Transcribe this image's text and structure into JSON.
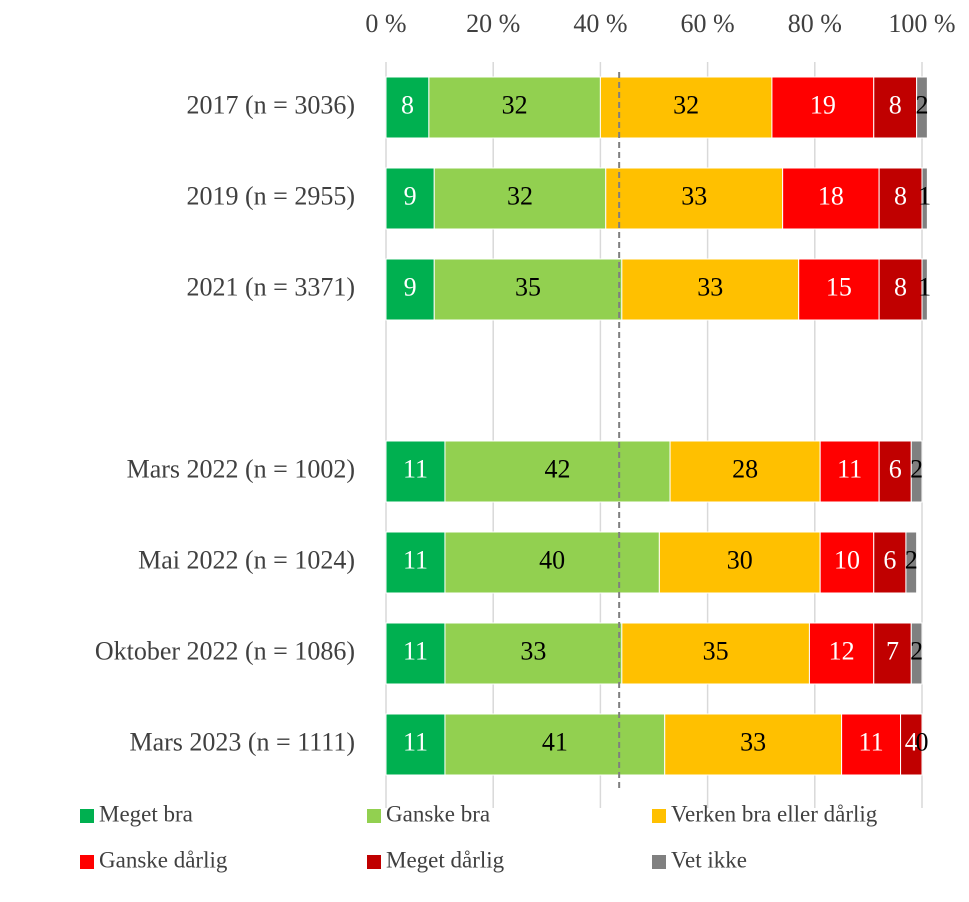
{
  "chart_data": {
    "type": "stacked_barh",
    "categories": [
      "2017 (n = 3036)",
      "2019 (n = 2955)",
      "2021 (n = 3371)",
      null,
      "Mars 2022 (n = 1002)",
      "Mai 2022 (n = 1024)",
      "Oktober 2022 (n = 1086)",
      "Mars 2023 (n = 1111)"
    ],
    "series": [
      {
        "name": "Meget bra",
        "color": "#00b050",
        "label_color": "#ffffff",
        "values": [
          8,
          9,
          9,
          null,
          11,
          11,
          11,
          11
        ]
      },
      {
        "name": "Ganske bra",
        "color": "#92d050",
        "label_color": "#000000",
        "values": [
          32,
          32,
          35,
          null,
          42,
          40,
          33,
          41
        ]
      },
      {
        "name": "Verken bra eller dårlig",
        "color": "#ffc000",
        "label_color": "#000000",
        "values": [
          32,
          33,
          33,
          null,
          28,
          30,
          35,
          33
        ]
      },
      {
        "name": "Ganske dårlig",
        "color": "#ff0000",
        "label_color": "#ffffff",
        "values": [
          19,
          18,
          15,
          null,
          11,
          10,
          12,
          11
        ]
      },
      {
        "name": "Meget dårlig",
        "color": "#c00000",
        "label_color": "#ffffff",
        "values": [
          8,
          8,
          8,
          null,
          6,
          6,
          7,
          4
        ]
      },
      {
        "name": "Vet ikke",
        "color": "#808080",
        "label_color": "#000000",
        "values": [
          2,
          1,
          1,
          null,
          2,
          2,
          2,
          0
        ]
      }
    ],
    "xlim": [
      0,
      100
    ],
    "xticks": [
      {
        "value": 0,
        "label": "0 %"
      },
      {
        "value": 20,
        "label": "20 %"
      },
      {
        "value": 40,
        "label": "40 %"
      },
      {
        "value": 60,
        "label": "60 %"
      },
      {
        "value": 80,
        "label": "80 %"
      },
      {
        "value": 100,
        "label": "100 %"
      }
    ],
    "grid": true,
    "reference_line": 43.5,
    "legend": "bottom"
  }
}
